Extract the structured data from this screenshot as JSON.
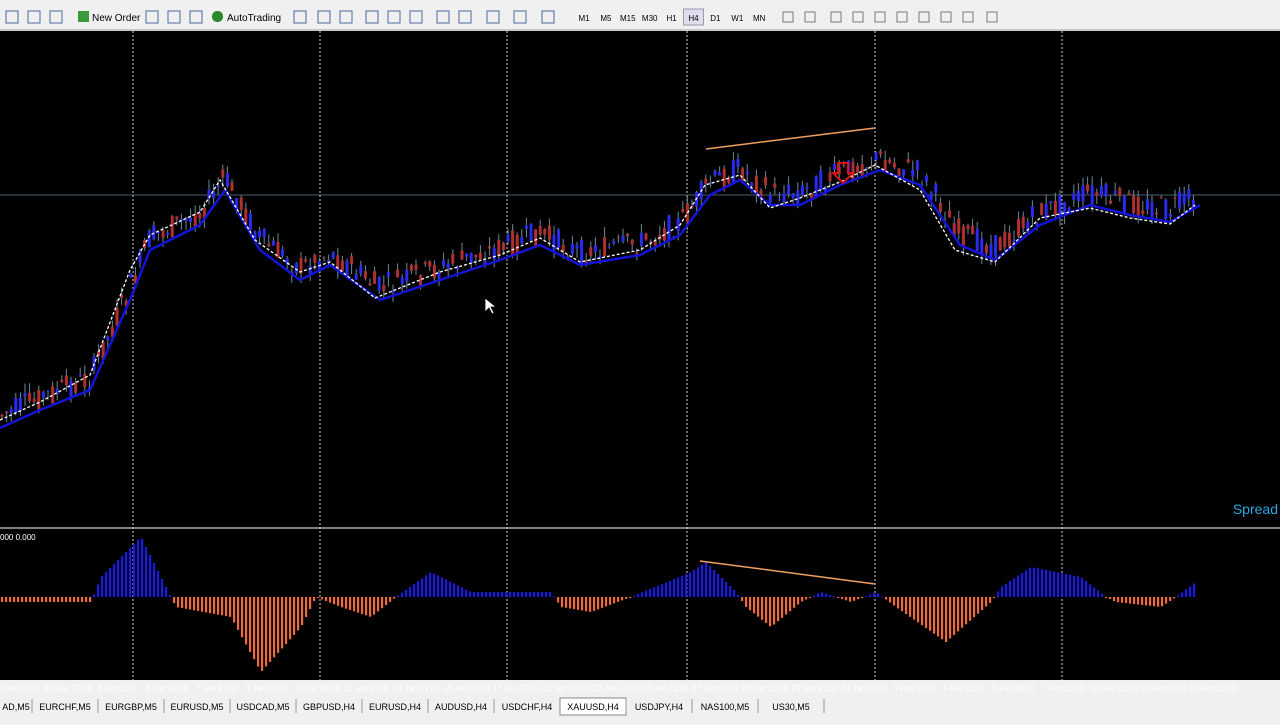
{
  "toolbar": {
    "buttons": [
      "New Order",
      "AutoTrading"
    ],
    "timeframes": [
      "M1",
      "M5",
      "M15",
      "M30",
      "H1",
      "H4",
      "D1",
      "W1",
      "MN"
    ]
  },
  "chart": {
    "indicator_label": "000 0.000",
    "spread_label": "Spread",
    "time_labels": [
      "0 Dec 09:00",
      "31 Dec 17:00",
      "3 Jan 01:00",
      "6 Jan 09:00",
      "7 Jan 17:00",
      "9 Jan 01:00",
      "10 Jan 09:00",
      "13 Jan 17:00",
      "15 Jan 01:00",
      "16 Jan 09:00",
      "17 Jan 17:00",
      "21 Jan 05:00",
      "22 Jan 13:00",
      "23 Jan 21:00",
      "27 Jan 05:00",
      "28 Jan 13:00",
      "29 Jan 21:00",
      "31 Jan 05:00",
      "3 Feb 13:00",
      "4 Feb 21:00",
      "6 Feb 05:00",
      "7 Feb 13:00",
      "10 Feb 21:00",
      "12 Feb 05:00",
      "13 Feb 13:00"
    ]
  },
  "tabs": {
    "items": [
      "AD,M5",
      "EURCHF,M5",
      "EURGBP,M5",
      "EURUSD,M5",
      "USDCAD,M5",
      "GBPUSD,H4",
      "EURUSD,H4",
      "AUDUSD,H4",
      "USDCHF,H4",
      "XAUUSD,H4",
      "USDJPY,H4",
      "NAS100,M5",
      "US30,M5"
    ],
    "active": "XAUUSD,H4"
  }
}
